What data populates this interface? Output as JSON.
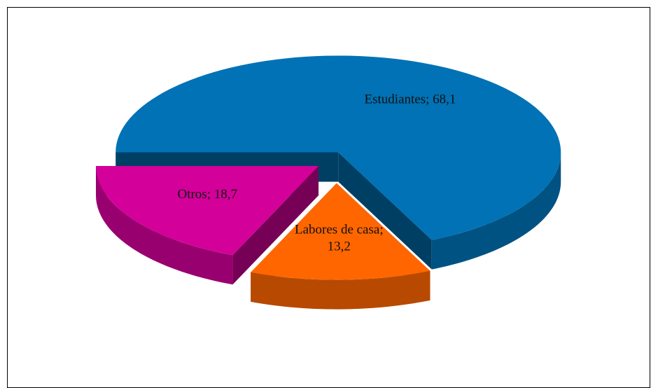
{
  "chart_data": {
    "type": "pie",
    "values": [
      68.1,
      13.2,
      18.7
    ],
    "value_labels": [
      "Estudiantes; 68,1",
      "Labores de casa; 13,2",
      "Otros; 18,7"
    ],
    "colors": [
      "#0072b5",
      "#ff6600",
      "#d4009a"
    ]
  }
}
